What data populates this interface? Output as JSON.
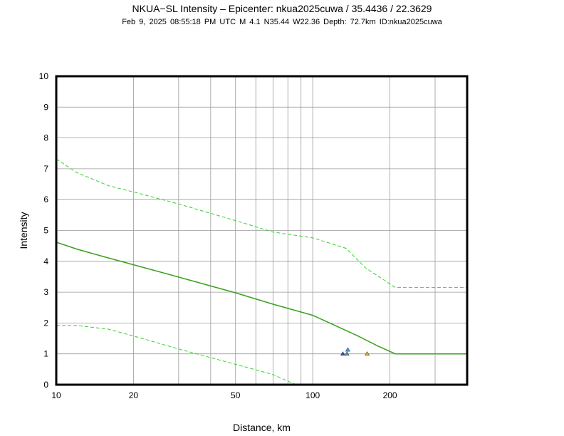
{
  "header": {
    "title": "NKUA−SL Intensity –  Epicenter: nkua2025cuwa / 35.4436 / 22.3629",
    "subtitle": "Feb  9, 2025 08:55:18 PM UTC   M 4.1   N35.44 W22.36   Depth: 72.7km   ID:nkua2025cuwa"
  },
  "chart_data": {
    "type": "line",
    "title": "NKUA−SL Intensity –  Epicenter: nkua2025cuwa / 35.4436 / 22.3629",
    "subtitle": "Feb  9, 2025 08:55:18 PM UTC   M 4.1   N35.44 W22.36   Depth: 72.7km   ID:nkua2025cuwa",
    "xlabel": "Distance, km",
    "ylabel": "Intensity",
    "xscale": "log",
    "xlim": [
      10,
      400
    ],
    "ylim": [
      0,
      10
    ],
    "x_ticks": [
      10,
      20,
      50,
      100,
      200
    ],
    "x_gridlines": [
      10,
      20,
      30,
      40,
      50,
      60,
      70,
      80,
      90,
      100,
      200,
      300,
      400
    ],
    "y_ticks": [
      0,
      1,
      2,
      3,
      4,
      5,
      6,
      7,
      8,
      9,
      10
    ],
    "grid": true,
    "series": [
      {
        "style": "solid",
        "color": "#3aa01e",
        "x": [
          10,
          12,
          15,
          20,
          30,
          50,
          70,
          100,
          120,
          150,
          180,
          210,
          400
        ],
        "y": [
          4.62,
          4.4,
          4.17,
          3.89,
          3.49,
          2.98,
          2.61,
          2.25,
          1.95,
          1.58,
          1.25,
          1.0,
          1.0
        ]
      },
      {
        "style": "dashed",
        "color": "#38d030",
        "x": [
          10,
          12,
          16,
          20,
          30,
          50,
          70,
          100,
          135,
          160,
          210,
          400
        ],
        "y": [
          7.32,
          6.88,
          6.45,
          6.25,
          5.86,
          5.32,
          4.95,
          4.76,
          4.42,
          3.8,
          3.15,
          3.15
        ]
      },
      {
        "style": "dashed",
        "color": "#38d030",
        "x": [
          10,
          12,
          16,
          20,
          30,
          50,
          70,
          86
        ],
        "y": [
          1.92,
          1.92,
          1.8,
          1.58,
          1.16,
          0.66,
          0.33,
          0.0
        ]
      }
    ],
    "points": [
      {
        "x": 131,
        "y": 1.0,
        "color": "#4040c0"
      },
      {
        "x": 136,
        "y": 1.0,
        "color": "#40a0a0"
      },
      {
        "x": 137,
        "y": 1.13,
        "color": "#40a0ff"
      },
      {
        "x": 163,
        "y": 1.0,
        "color": "#f0b020"
      }
    ]
  }
}
